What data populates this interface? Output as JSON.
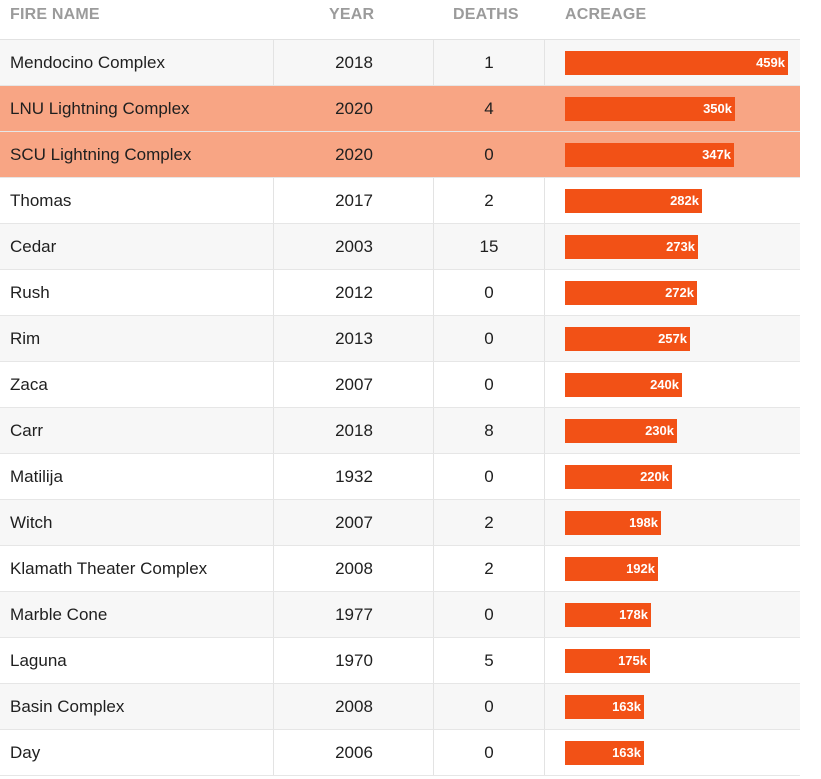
{
  "headers": {
    "name": "FIRE NAME",
    "year": "YEAR",
    "deaths": "DEATHS",
    "acreage": "ACREAGE"
  },
  "colors": {
    "bar": "#f25116",
    "highlight_row": "#f8a584",
    "header_text": "#9b9b9b"
  },
  "chart_data": {
    "type": "table",
    "columns": [
      "FIRE NAME",
      "YEAR",
      "DEATHS",
      "ACREAGE"
    ],
    "xlim": [
      0,
      459
    ],
    "rows": [
      {
        "name": "Mendocino Complex",
        "year": "2018",
        "deaths": "1",
        "acres": 459,
        "label": "459k",
        "highlight": false
      },
      {
        "name": "LNU Lightning Complex",
        "year": "2020",
        "deaths": "4",
        "acres": 350,
        "label": "350k",
        "highlight": true
      },
      {
        "name": "SCU Lightning Complex",
        "year": "2020",
        "deaths": "0",
        "acres": 347,
        "label": "347k",
        "highlight": true
      },
      {
        "name": "Thomas",
        "year": "2017",
        "deaths": "2",
        "acres": 282,
        "label": "282k",
        "highlight": false
      },
      {
        "name": "Cedar",
        "year": "2003",
        "deaths": "15",
        "acres": 273,
        "label": "273k",
        "highlight": false
      },
      {
        "name": "Rush",
        "year": "2012",
        "deaths": "0",
        "acres": 272,
        "label": "272k",
        "highlight": false
      },
      {
        "name": "Rim",
        "year": "2013",
        "deaths": "0",
        "acres": 257,
        "label": "257k",
        "highlight": false
      },
      {
        "name": "Zaca",
        "year": "2007",
        "deaths": "0",
        "acres": 240,
        "label": "240k",
        "highlight": false
      },
      {
        "name": "Carr",
        "year": "2018",
        "deaths": "8",
        "acres": 230,
        "label": "230k",
        "highlight": false
      },
      {
        "name": "Matilija",
        "year": "1932",
        "deaths": "0",
        "acres": 220,
        "label": "220k",
        "highlight": false
      },
      {
        "name": "Witch",
        "year": "2007",
        "deaths": "2",
        "acres": 198,
        "label": "198k",
        "highlight": false
      },
      {
        "name": "Klamath Theater Complex",
        "year": "2008",
        "deaths": "2",
        "acres": 192,
        "label": "192k",
        "highlight": false
      },
      {
        "name": "Marble Cone",
        "year": "1977",
        "deaths": "0",
        "acres": 178,
        "label": "178k",
        "highlight": false
      },
      {
        "name": "Laguna",
        "year": "1970",
        "deaths": "5",
        "acres": 175,
        "label": "175k",
        "highlight": false
      },
      {
        "name": "Basin Complex",
        "year": "2008",
        "deaths": "0",
        "acres": 163,
        "label": "163k",
        "highlight": false
      },
      {
        "name": "Day",
        "year": "2006",
        "deaths": "0",
        "acres": 163,
        "label": "163k",
        "highlight": false
      }
    ]
  }
}
